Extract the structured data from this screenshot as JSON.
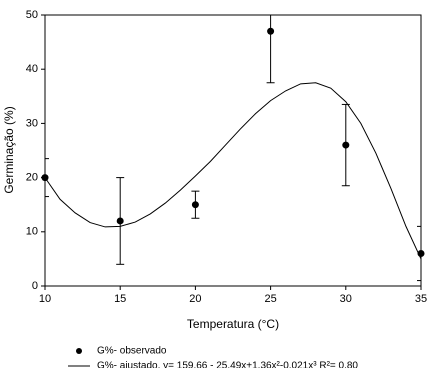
{
  "chart_data": {
    "type": "scatter",
    "xlabel": "Temperatura (°C)",
    "ylabel": "Germinação (%)",
    "xlim": [
      10,
      35
    ],
    "xticks": [
      10,
      15,
      20,
      25,
      30,
      35
    ],
    "ylim": [
      0,
      50
    ],
    "yticks": [
      0,
      10,
      20,
      30,
      40,
      50
    ],
    "series": [
      {
        "name": "G%- observado",
        "kind": "points",
        "color": "#000000",
        "x": [
          10,
          15,
          20,
          25,
          30,
          35
        ],
        "values": [
          20,
          12,
          15,
          47,
          26,
          6
        ],
        "errors": [
          3.5,
          8,
          2.5,
          9.5,
          7.5,
          5
        ]
      },
      {
        "name": "G%- ajustado, y= 159,66 - 25,49x+1,36x²-0,021x³  R²= 0,80",
        "kind": "line",
        "color": "#000000",
        "x": [
          10,
          11,
          12,
          13,
          14,
          15,
          16,
          17,
          18,
          19,
          20,
          21,
          22,
          23,
          24,
          25,
          26,
          27,
          28,
          29,
          30,
          31,
          32,
          33,
          34,
          35
        ],
        "values": [
          20,
          16,
          13.5,
          11.7,
          10.9,
          11,
          11.8,
          13.3,
          15.3,
          17.7,
          20.3,
          23,
          26,
          29,
          31.8,
          34.2,
          36,
          37.3,
          37.5,
          36.5,
          34,
          30,
          24.5,
          18,
          11,
          5
        ]
      }
    ]
  }
}
